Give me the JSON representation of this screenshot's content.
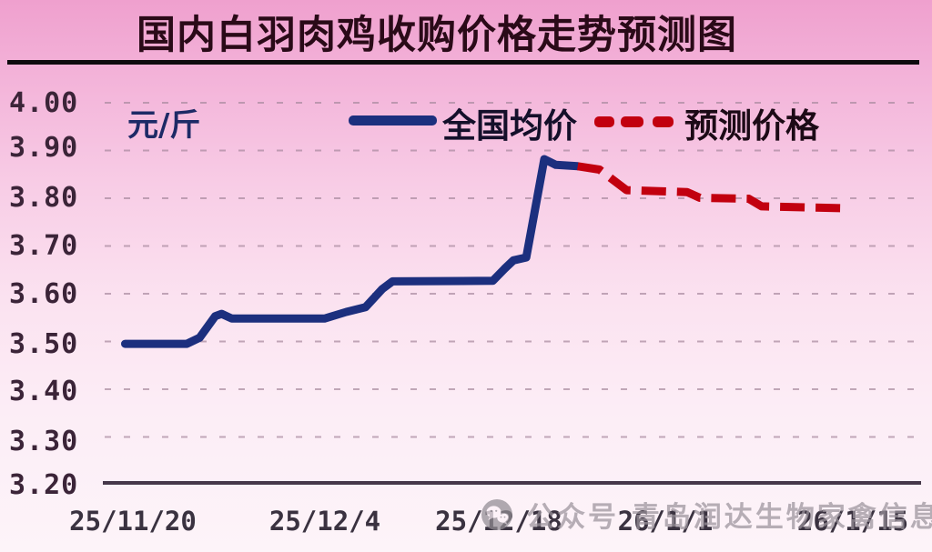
{
  "title": "国内白羽肉鸡收购价格走势预测图",
  "unit_label": "元/斤",
  "legend": {
    "actual_label": "全国均价",
    "forecast_label": "预测价格"
  },
  "watermark": {
    "icon": "wechat-icon",
    "text": "公众号  青岛润达生物家禽信息"
  },
  "colors": {
    "actual_line": "#1c2f7e",
    "forecast_line": "#c2000f",
    "grid_line": "#a8899e",
    "axis_line": "#46384a",
    "title_text": "#2a0a18",
    "tick_text": "#3b2438",
    "background_top": "#efa0ce",
    "background_bottom": "#fdf4f9"
  },
  "chart_data": {
    "type": "line",
    "title": "国内白羽肉鸡收购价格走势预测图",
    "ylabel": "元/斤",
    "xlabel": "",
    "ylim": [
      3.2,
      4.0
    ],
    "yticks": [
      4.0,
      3.9,
      3.8,
      3.7,
      3.6,
      3.5,
      3.4,
      3.3,
      3.2
    ],
    "ytick_labels": [
      "4.00",
      "3.90",
      "3.80",
      "3.70",
      "3.60",
      "3.50",
      "3.40",
      "3.30",
      "3.20"
    ],
    "xticklabels": [
      "25/11/20",
      "25/12/4",
      "25/12/18",
      "26/1/1",
      "26/1/15"
    ],
    "xtick_days": [
      0,
      14,
      28,
      42,
      56
    ],
    "grid": "horizontal-dashed",
    "legend_position": "top",
    "series": [
      {
        "name": "全国均价",
        "style": "solid",
        "color": "#1c2f7e",
        "points_day_price": [
          [
            -0.6,
            3.495
          ],
          [
            4.2,
            3.495
          ],
          [
            5.2,
            3.508
          ],
          [
            6.4,
            3.553
          ],
          [
            6.9,
            3.558
          ],
          [
            7.7,
            3.548
          ],
          [
            14.9,
            3.548
          ],
          [
            16.6,
            3.562
          ],
          [
            18.1,
            3.572
          ],
          [
            19.4,
            3.61
          ],
          [
            20.2,
            3.626
          ],
          [
            28.0,
            3.627
          ],
          [
            28.9,
            3.652
          ],
          [
            29.6,
            3.67
          ],
          [
            30.6,
            3.676
          ],
          [
            32.0,
            3.882
          ],
          [
            32.9,
            3.87
          ],
          [
            34.6,
            3.867
          ]
        ]
      },
      {
        "name": "预测价格",
        "style": "dashed",
        "color": "#c2000f",
        "points_day_price": [
          [
            34.6,
            3.867
          ],
          [
            36.3,
            3.86
          ],
          [
            38.4,
            3.817
          ],
          [
            43.1,
            3.813
          ],
          [
            44.1,
            3.801
          ],
          [
            47.9,
            3.799
          ],
          [
            48.9,
            3.783
          ],
          [
            55.5,
            3.779
          ]
        ]
      }
    ]
  }
}
